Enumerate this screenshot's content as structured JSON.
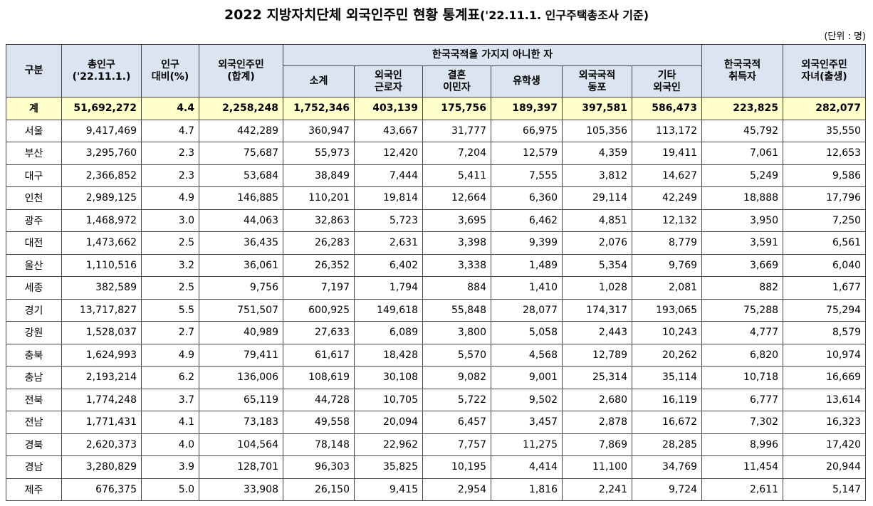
{
  "title": {
    "main": "2022 지방자치단체 외국인주민 현황 통계표",
    "sub": "('22.11.1. 인구주택총조사 기준)"
  },
  "unit": "(단위 : 명)",
  "headers": {
    "region": "구분",
    "total_pop_1": "총인구",
    "total_pop_2": "('22.11.1.)",
    "ratio_1": "인구",
    "ratio_2": "대비(%)",
    "foreign_1": "외국인주민",
    "foreign_2": "(합계)",
    "group": "한국국적을 가지지 아니한 자",
    "subtotal": "소계",
    "worker_1": "외국인",
    "worker_2": "근로자",
    "marriage_1": "결혼",
    "marriage_2": "이민자",
    "student": "유학생",
    "compatriot_1": "외국국적",
    "compatriot_2": "동포",
    "other_1": "기타",
    "other_2": "외국인",
    "naturalized_1": "한국국적",
    "naturalized_2": "취득자",
    "children_1": "외국인주민",
    "children_2": "자녀(출생)"
  },
  "rows": [
    [
      "계",
      "51,692,272",
      "4.4",
      "2,258,248",
      "1,752,346",
      "403,139",
      "175,756",
      "189,397",
      "397,581",
      "586,473",
      "223,825",
      "282,077"
    ],
    [
      "서울",
      "9,417,469",
      "4.7",
      "442,289",
      "360,947",
      "43,667",
      "31,777",
      "66,975",
      "105,356",
      "113,172",
      "45,792",
      "35,550"
    ],
    [
      "부산",
      "3,295,760",
      "2.3",
      "75,687",
      "55,973",
      "12,420",
      "7,204",
      "12,579",
      "4,359",
      "19,411",
      "7,061",
      "12,653"
    ],
    [
      "대구",
      "2,366,852",
      "2.3",
      "53,684",
      "38,849",
      "7,444",
      "5,411",
      "7,555",
      "3,812",
      "14,627",
      "5,249",
      "9,586"
    ],
    [
      "인천",
      "2,989,125",
      "4.9",
      "146,885",
      "110,201",
      "19,814",
      "12,664",
      "6,360",
      "29,114",
      "42,249",
      "18,888",
      "17,796"
    ],
    [
      "광주",
      "1,468,972",
      "3.0",
      "44,063",
      "32,863",
      "5,723",
      "3,695",
      "6,462",
      "4,851",
      "12,132",
      "3,950",
      "7,250"
    ],
    [
      "대전",
      "1,473,662",
      "2.5",
      "36,435",
      "26,283",
      "2,631",
      "3,398",
      "9,399",
      "2,076",
      "8,779",
      "3,591",
      "6,561"
    ],
    [
      "울산",
      "1,110,516",
      "3.2",
      "36,061",
      "26,352",
      "6,402",
      "3,338",
      "1,489",
      "5,354",
      "9,769",
      "3,669",
      "6,040"
    ],
    [
      "세종",
      "382,589",
      "2.5",
      "9,756",
      "7,197",
      "1,794",
      "884",
      "1,410",
      "1,028",
      "2,081",
      "882",
      "1,677"
    ],
    [
      "경기",
      "13,717,827",
      "5.5",
      "751,507",
      "600,925",
      "149,618",
      "55,848",
      "28,077",
      "174,317",
      "193,065",
      "75,288",
      "75,294"
    ],
    [
      "강원",
      "1,528,037",
      "2.7",
      "40,989",
      "27,633",
      "6,089",
      "3,800",
      "5,058",
      "2,443",
      "10,243",
      "4,777",
      "8,579"
    ],
    [
      "충북",
      "1,624,993",
      "4.9",
      "79,411",
      "61,617",
      "18,428",
      "5,570",
      "4,568",
      "12,789",
      "20,262",
      "6,820",
      "10,974"
    ],
    [
      "충남",
      "2,193,214",
      "6.2",
      "136,006",
      "108,619",
      "30,108",
      "9,082",
      "9,001",
      "25,314",
      "35,114",
      "10,718",
      "16,669"
    ],
    [
      "전북",
      "1,774,248",
      "3.7",
      "65,119",
      "44,728",
      "10,705",
      "5,722",
      "9,502",
      "2,680",
      "16,119",
      "6,777",
      "13,614"
    ],
    [
      "전남",
      "1,771,431",
      "4.1",
      "73,183",
      "49,558",
      "20,094",
      "6,457",
      "3,457",
      "2,878",
      "16,672",
      "7,302",
      "16,323"
    ],
    [
      "경북",
      "2,620,373",
      "4.0",
      "104,564",
      "78,148",
      "22,962",
      "7,757",
      "11,275",
      "7,869",
      "28,285",
      "8,996",
      "17,420"
    ],
    [
      "경남",
      "3,280,829",
      "3.9",
      "128,701",
      "96,303",
      "35,825",
      "10,195",
      "4,414",
      "11,100",
      "34,769",
      "11,454",
      "20,944"
    ],
    [
      "제주",
      "676,375",
      "5.0",
      "33,908",
      "26,150",
      "9,415",
      "2,954",
      "1,816",
      "2,241",
      "9,724",
      "2,611",
      "5,147"
    ]
  ]
}
